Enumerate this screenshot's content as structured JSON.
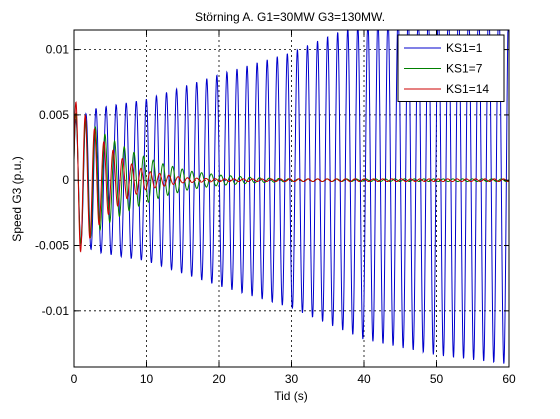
{
  "chart_data": {
    "type": "line",
    "title": "Störning A. G1=30MW G3=130MW.",
    "xlabel": "Tid (s)",
    "ylabel": "Speed G3 (p.u.)",
    "xlim": [
      0,
      60
    ],
    "ylim": [
      -0.0143,
      0.0115
    ],
    "x_ticks": [
      0,
      10,
      20,
      30,
      40,
      50,
      60
    ],
    "x_tick_labels": [
      "0",
      "10",
      "20",
      "30",
      "40",
      "50",
      "60"
    ],
    "y_ticks": [
      -0.01,
      -0.005,
      0,
      0.005,
      0.01
    ],
    "y_tick_labels": [
      "-0.01",
      "-0.005",
      "0",
      "0.005",
      "0.01"
    ],
    "grid": true,
    "legend_position": "top-right",
    "series_model": "damped/growing sinusoid sampled every 0.04 s: y = amplitude(t) * sin(2*pi*freq*t + phase); amplitude given at the listed times",
    "series": [
      {
        "name": "KS1=1",
        "color": "#0000cc",
        "freq_hz": 0.72,
        "phase": 0.4,
        "amplitude_points": [
          [
            0,
            0.0046
          ],
          [
            3,
            0.0055
          ],
          [
            10,
            0.0062
          ],
          [
            20,
            0.0081
          ],
          [
            30,
            0.0098
          ],
          [
            40,
            0.0122
          ],
          [
            50,
            0.0134
          ],
          [
            60,
            0.0141
          ]
        ]
      },
      {
        "name": "KS1=7",
        "color": "#008000",
        "freq_hz": 0.75,
        "phase": 0.3,
        "amplitude_points": [
          [
            0,
            0.0052
          ],
          [
            2,
            0.0045
          ],
          [
            5,
            0.0032
          ],
          [
            8,
            0.0022
          ],
          [
            12,
            0.0013
          ],
          [
            16,
            0.0007
          ],
          [
            20,
            0.0004
          ],
          [
            25,
            0.0002
          ],
          [
            30,
            0.0001
          ],
          [
            60,
            0.0001
          ]
        ]
      },
      {
        "name": "KS1=14",
        "color": "#cc0000",
        "freq_hz": 0.78,
        "phase": 0.25,
        "amplitude_points": [
          [
            0,
            0.0062
          ],
          [
            1.5,
            0.005
          ],
          [
            4,
            0.003
          ],
          [
            7,
            0.0015
          ],
          [
            10,
            0.0007
          ],
          [
            15,
            0.0002
          ],
          [
            20,
            0.0001
          ],
          [
            60,
            0.0001
          ]
        ]
      }
    ]
  }
}
